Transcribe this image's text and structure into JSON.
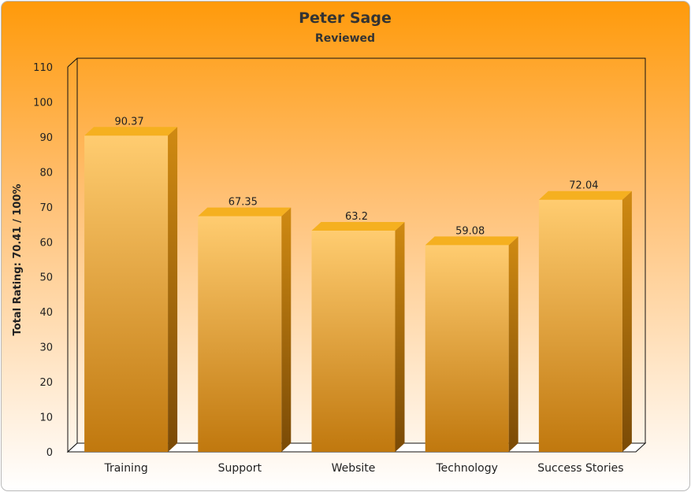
{
  "chart_data": {
    "type": "bar",
    "title": "Peter Sage",
    "subtitle": "Reviewed",
    "ylabel": "Total Rating: 70.41 / 100%",
    "xlabel": "",
    "categories": [
      "Training",
      "Support",
      "Website",
      "Technology",
      "Success Stories"
    ],
    "values": [
      90.37,
      67.35,
      63.2,
      59.08,
      72.04
    ],
    "data_labels": [
      "90.37",
      "67.35",
      "63.2",
      "59.08",
      "72.04"
    ],
    "ylim": [
      0,
      110
    ],
    "yticks": [
      0,
      10,
      20,
      30,
      40,
      50,
      60,
      70,
      80,
      90,
      100,
      110
    ],
    "grid": false,
    "legend": "none",
    "style": "3d",
    "colors": {
      "bar_top": "#f5b020",
      "bar_front_light": "#ffcc70",
      "bar_front_dark": "#c0780e",
      "bar_side": "#a8680a",
      "background_top": "#ff9a0a",
      "background_bottom": "#ffffff"
    }
  }
}
